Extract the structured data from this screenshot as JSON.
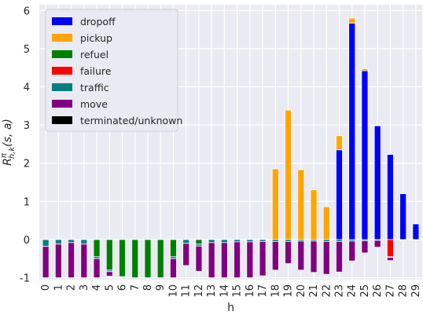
{
  "chart_data": {
    "type": "bar",
    "stacked": true,
    "xlabel": "h",
    "ylabel": "R^{π}_{h,k}(s, a)",
    "ylim": [
      -1.05,
      6.15
    ],
    "yticks": [
      -1,
      0,
      1,
      2,
      3,
      4,
      5,
      6
    ],
    "grid": true,
    "legend_position": "top-left",
    "categories": [
      "0",
      "1",
      "2",
      "3",
      "4",
      "5",
      "6",
      "7",
      "8",
      "9",
      "10",
      "11",
      "12",
      "13",
      "14",
      "15",
      "16",
      "17",
      "18",
      "19",
      "20",
      "21",
      "22",
      "23",
      "24",
      "25",
      "26",
      "27",
      "28",
      "29"
    ],
    "series": [
      {
        "name": "dropoff",
        "color": "#0000ff",
        "values": [
          0,
          0,
          0,
          0,
          0,
          0,
          0,
          0,
          0,
          0,
          0,
          0,
          0,
          0,
          0,
          0,
          0,
          0,
          0,
          0,
          0,
          0,
          0,
          2.35,
          5.67,
          4.42,
          2.98,
          2.23,
          1.2,
          0.41
        ]
      },
      {
        "name": "pickup",
        "color": "#ffa500",
        "values": [
          0,
          0,
          0,
          0,
          0,
          0,
          0,
          0,
          0,
          0,
          0,
          0,
          0,
          0,
          0,
          0,
          0,
          0,
          1.85,
          3.39,
          1.83,
          1.3,
          0.86,
          0.37,
          0.13,
          0.05,
          0,
          0,
          0,
          0
        ]
      },
      {
        "name": "refuel",
        "color": "#008000",
        "values": [
          0,
          0,
          0,
          0,
          -0.45,
          -0.8,
          -0.97,
          -1.0,
          -1.0,
          -1.0,
          -0.45,
          0,
          -0.12,
          0,
          0,
          0,
          0,
          0,
          0,
          0,
          0,
          0,
          0,
          0,
          0,
          0,
          0,
          0,
          0,
          0
        ]
      },
      {
        "name": "failure",
        "color": "#ff0000",
        "values": [
          0,
          0,
          0,
          0,
          0,
          0,
          0,
          0,
          0,
          0,
          0,
          0,
          0,
          0,
          0,
          0,
          0,
          0,
          0,
          0,
          0,
          0,
          0,
          0,
          0,
          0,
          0,
          -0.45,
          0,
          0
        ]
      },
      {
        "name": "traffic",
        "color": "#008080",
        "values": [
          -0.18,
          -0.12,
          -0.08,
          -0.12,
          -0.05,
          -0.04,
          0,
          0,
          0,
          0,
          -0.05,
          -0.1,
          -0.05,
          -0.08,
          -0.08,
          -0.06,
          -0.06,
          -0.05,
          -0.05,
          -0.05,
          -0.04,
          -0.04,
          -0.05,
          -0.05,
          -0.04,
          -0.03,
          -0.02,
          -0.02,
          -0.01,
          -0.01
        ]
      },
      {
        "name": "move",
        "color": "#800080",
        "values": [
          -0.82,
          -0.88,
          -0.92,
          -0.88,
          -0.5,
          -0.12,
          0,
          0,
          0,
          0,
          -0.5,
          -0.58,
          -0.66,
          -0.92,
          -0.92,
          -0.94,
          -0.94,
          -0.9,
          -0.75,
          -0.58,
          -0.76,
          -0.82,
          -0.86,
          -0.8,
          -0.52,
          -0.32,
          -0.18,
          -0.08,
          -0.01,
          0
        ]
      },
      {
        "name": "terminated/unknown",
        "color": "#000000",
        "values": [
          0,
          0,
          0,
          0,
          0,
          0,
          0,
          0,
          0,
          0,
          0,
          0,
          0,
          0,
          0,
          0,
          0,
          0,
          0,
          0,
          0,
          0,
          0,
          0,
          0,
          0,
          0,
          0,
          0,
          0
        ]
      }
    ]
  }
}
